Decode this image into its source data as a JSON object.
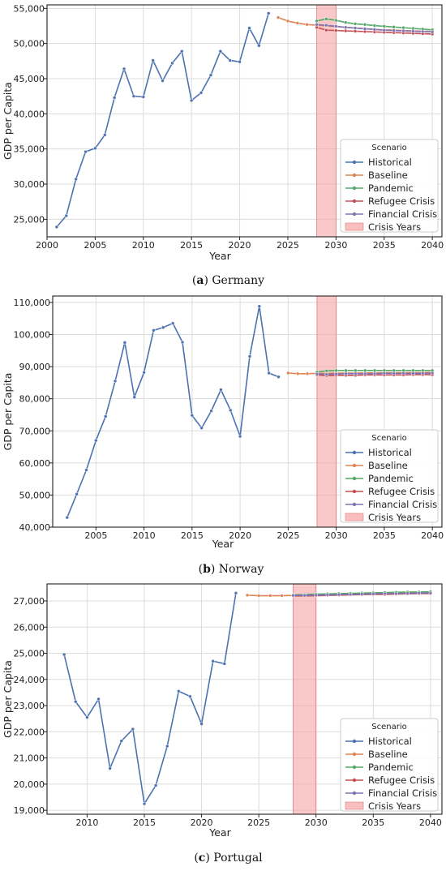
{
  "chart_data": [
    {
      "type": "line",
      "caption_letter": "a",
      "caption_text": "Germany",
      "xlabel": "Year",
      "ylabel": "GDP per Capita",
      "xlim": [
        2000,
        2041
      ],
      "ylim": [
        22500,
        55500
      ],
      "xticks": [
        2000,
        2005,
        2010,
        2015,
        2020,
        2025,
        2030,
        2035,
        2040
      ],
      "xtick_labels": [
        "2000",
        "2005",
        "2010",
        "2015",
        "2020",
        "2025",
        "2030",
        "2035",
        "2040"
      ],
      "yticks": [
        25000,
        30000,
        35000,
        40000,
        45000,
        50000,
        55000
      ],
      "ytick_labels": [
        "25,000",
        "30,000",
        "35,000",
        "40,000",
        "45,000",
        "50,000",
        "55,000"
      ],
      "crisis_band": [
        2028,
        2030
      ],
      "legend_title": "Scenario",
      "legend_position": "lower-right",
      "grid": true,
      "series": [
        {
          "name": "Historical",
          "color": "#4c72b0",
          "x": [
            2001,
            2002,
            2003,
            2004,
            2005,
            2006,
            2007,
            2008,
            2009,
            2010,
            2011,
            2012,
            2013,
            2014,
            2015,
            2016,
            2017,
            2018,
            2019,
            2020,
            2021,
            2022,
            2023
          ],
          "y": [
            23900,
            25500,
            30700,
            34600,
            35100,
            37000,
            42300,
            46400,
            42500,
            42400,
            47600,
            44700,
            47200,
            48900,
            41900,
            43000,
            45500,
            48900,
            47600,
            47400,
            52200,
            49700,
            54300
          ]
        },
        {
          "name": "Baseline",
          "color": "#dd8452",
          "x": [
            2024,
            2025,
            2026,
            2027,
            2028,
            2029,
            2030,
            2031,
            2032,
            2033,
            2034,
            2035,
            2036,
            2037,
            2038,
            2039,
            2040
          ],
          "y": [
            53700,
            53200,
            52900,
            52700,
            52600,
            52500,
            52400,
            52300,
            52200,
            52100,
            52000,
            51950,
            51900,
            51850,
            51800,
            51750,
            51700
          ]
        },
        {
          "name": "Pandemic",
          "color": "#55a868",
          "x": [
            2028,
            2029,
            2030,
            2031,
            2032,
            2033,
            2034,
            2035,
            2036,
            2037,
            2038,
            2039,
            2040
          ],
          "y": [
            53200,
            53500,
            53300,
            53000,
            52800,
            52700,
            52550,
            52450,
            52350,
            52250,
            52150,
            52050,
            51950
          ]
        },
        {
          "name": "Refugee Crisis",
          "color": "#c44e52",
          "x": [
            2028,
            2029,
            2030,
            2031,
            2032,
            2033,
            2034,
            2035,
            2036,
            2037,
            2038,
            2039,
            2040
          ],
          "y": [
            52300,
            51900,
            51850,
            51800,
            51750,
            51700,
            51650,
            51600,
            51550,
            51500,
            51450,
            51400,
            51350
          ]
        },
        {
          "name": "Financial Crisis",
          "color": "#8172b3",
          "x": [
            2028,
            2029,
            2030,
            2031,
            2032,
            2033,
            2034,
            2035,
            2036,
            2037,
            2038,
            2039,
            2040
          ],
          "y": [
            52700,
            52600,
            52450,
            52300,
            52200,
            52100,
            52000,
            51900,
            51850,
            51800,
            51750,
            51700,
            51650
          ]
        },
        {
          "name": "Crisis Years",
          "color": "#f4a6a6",
          "kind": "band"
        }
      ]
    },
    {
      "type": "line",
      "caption_letter": "b",
      "caption_text": "Norway",
      "xlabel": "Year",
      "ylabel": "GDP per Capita",
      "xlim": [
        2000.5,
        2041
      ],
      "ylim": [
        40000,
        112000
      ],
      "xticks": [
        2005,
        2010,
        2015,
        2020,
        2025,
        2030,
        2035,
        2040
      ],
      "xtick_labels": [
        "2005",
        "2010",
        "2015",
        "2020",
        "2025",
        "2030",
        "2035",
        "2040"
      ],
      "yticks": [
        40000,
        50000,
        60000,
        70000,
        80000,
        90000,
        100000,
        110000
      ],
      "ytick_labels": [
        "40,000",
        "50,000",
        "60,000",
        "70,000",
        "80,000",
        "90,000",
        "100,000",
        "110,000"
      ],
      "crisis_band": [
        2028,
        2030
      ],
      "legend_title": "Scenario",
      "legend_position": "lower-right",
      "grid": true,
      "series": [
        {
          "name": "Historical",
          "color": "#4c72b0",
          "x": [
            2002,
            2003,
            2004,
            2005,
            2006,
            2007,
            2008,
            2009,
            2010,
            2011,
            2012,
            2013,
            2014,
            2015,
            2016,
            2017,
            2018,
            2019,
            2020,
            2021,
            2022,
            2023,
            2024
          ],
          "y": [
            43000,
            50300,
            57800,
            67000,
            74500,
            85500,
            97500,
            80500,
            88200,
            101300,
            102200,
            103500,
            97600,
            74800,
            70900,
            76200,
            82800,
            76400,
            68300,
            93200,
            108800,
            88000,
            86800
          ]
        },
        {
          "name": "Baseline",
          "color": "#dd8452",
          "x": [
            2025,
            2026,
            2027,
            2028,
            2029,
            2030,
            2031,
            2032,
            2033,
            2034,
            2035,
            2036,
            2037,
            2038,
            2039,
            2040
          ],
          "y": [
            88000,
            87800,
            87800,
            87900,
            87900,
            88000,
            88000,
            88000,
            88050,
            88050,
            88100,
            88100,
            88100,
            88150,
            88150,
            88200
          ]
        },
        {
          "name": "Pandemic",
          "color": "#55a868",
          "x": [
            2028,
            2029,
            2030,
            2031,
            2032,
            2033,
            2034,
            2035,
            2036,
            2037,
            2038,
            2039,
            2040
          ],
          "y": [
            88300,
            88700,
            88800,
            88800,
            88800,
            88800,
            88800,
            88800,
            88800,
            88800,
            88800,
            88800,
            88800
          ]
        },
        {
          "name": "Refugee Crisis",
          "color": "#c44e52",
          "x": [
            2028,
            2029,
            2030,
            2031,
            2032,
            2033,
            2034,
            2035,
            2036,
            2037,
            2038,
            2039,
            2040
          ],
          "y": [
            87400,
            87200,
            87300,
            87300,
            87300,
            87400,
            87400,
            87400,
            87400,
            87400,
            87500,
            87500,
            87500
          ]
        },
        {
          "name": "Financial Crisis",
          "color": "#8172b3",
          "x": [
            2028,
            2029,
            2030,
            2031,
            2032,
            2033,
            2034,
            2035,
            2036,
            2037,
            2038,
            2039,
            2040
          ],
          "y": [
            87700,
            87600,
            87700,
            87800,
            87800,
            87800,
            87800,
            87900,
            87900,
            87900,
            87900,
            87900,
            88000
          ]
        },
        {
          "name": "Crisis Years",
          "color": "#f4a6a6",
          "kind": "band"
        }
      ]
    },
    {
      "type": "line",
      "caption_letter": "c",
      "caption_text": "Portugal",
      "xlabel": "Year",
      "ylabel": "GDP per Capita",
      "xlim": [
        2006.5,
        2041
      ],
      "ylim": [
        18850,
        27650
      ],
      "xticks": [
        2010,
        2015,
        2020,
        2025,
        2030,
        2035,
        2040
      ],
      "xtick_labels": [
        "2010",
        "2015",
        "2020",
        "2025",
        "2030",
        "2035",
        "2040"
      ],
      "yticks": [
        19000,
        20000,
        21000,
        22000,
        23000,
        24000,
        25000,
        26000,
        27000
      ],
      "ytick_labels": [
        "19,000",
        "20,000",
        "21,000",
        "22,000",
        "23,000",
        "24,000",
        "25,000",
        "26,000",
        "27,000"
      ],
      "crisis_band": [
        2028,
        2030
      ],
      "legend_title": "Scenario",
      "legend_position": "lower-right",
      "grid": true,
      "series": [
        {
          "name": "Historical",
          "color": "#4c72b0",
          "x": [
            2008,
            2009,
            2010,
            2011,
            2012,
            2013,
            2014,
            2015,
            2016,
            2017,
            2018,
            2019,
            2020,
            2021,
            2022,
            2023
          ],
          "y": [
            24950,
            23150,
            22550,
            23250,
            20600,
            21650,
            22100,
            19250,
            19950,
            21450,
            23550,
            23350,
            22300,
            24700,
            24600,
            27300
          ]
        },
        {
          "name": "Baseline",
          "color": "#dd8452",
          "x": [
            2024,
            2025,
            2026,
            2027,
            2028,
            2029,
            2030,
            2031,
            2032,
            2033,
            2034,
            2035,
            2036,
            2037,
            2038,
            2039,
            2040
          ],
          "y": [
            27220,
            27200,
            27200,
            27200,
            27210,
            27220,
            27230,
            27240,
            27250,
            27260,
            27270,
            27270,
            27280,
            27290,
            27300,
            27300,
            27310
          ]
        },
        {
          "name": "Pandemic",
          "color": "#55a868",
          "x": [
            2028,
            2029,
            2030,
            2031,
            2032,
            2033,
            2034,
            2035,
            2036,
            2037,
            2038,
            2039,
            2040
          ],
          "y": [
            27230,
            27240,
            27260,
            27270,
            27280,
            27290,
            27300,
            27310,
            27320,
            27330,
            27340,
            27340,
            27350
          ]
        },
        {
          "name": "Refugee Crisis",
          "color": "#c44e52",
          "x": [
            2028,
            2029,
            2030,
            2031,
            2032,
            2033,
            2034,
            2035,
            2036,
            2037,
            2038,
            2039,
            2040
          ],
          "y": [
            27190,
            27190,
            27200,
            27210,
            27220,
            27230,
            27240,
            27250,
            27250,
            27260,
            27270,
            27280,
            27280
          ]
        },
        {
          "name": "Financial Crisis",
          "color": "#8172b3",
          "x": [
            2028,
            2029,
            2030,
            2031,
            2032,
            2033,
            2034,
            2035,
            2036,
            2037,
            2038,
            2039,
            2040
          ],
          "y": [
            27210,
            27210,
            27220,
            27230,
            27240,
            27250,
            27260,
            27270,
            27280,
            27280,
            27290,
            27300,
            27300
          ]
        },
        {
          "name": "Crisis Years",
          "color": "#f4a6a6",
          "kind": "band"
        }
      ]
    }
  ]
}
